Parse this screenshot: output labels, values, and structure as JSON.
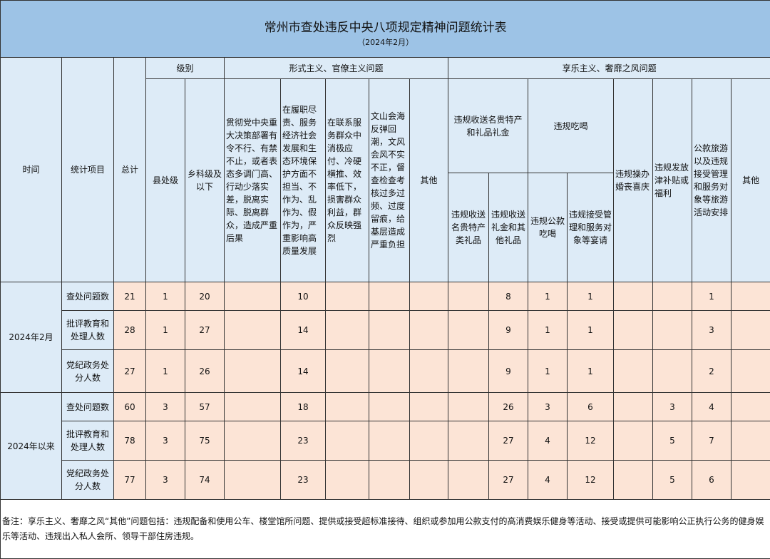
{
  "title": "常州市查处违反中央八项规定精神问题统计表",
  "subtitle": "（2024年2月）",
  "headers": {
    "time": "时间",
    "item": "统计项目",
    "total": "总计",
    "level": "级别",
    "county": "县处级",
    "township": "乡科级及以下",
    "formalism": "形式主义、官僚主义问题",
    "f": [
      "贯彻党中央重大决策部署有令不行、有禁不止，或者表态多调门高、行动少落实差，脱离实际、脱离群众，造成严重后果",
      "在履职尽责、服务经济社会发展和生态环境保护方面不担当、不作为、乱作为、假作为，严重影响高质量发展",
      "在联系服务群众中消极应付、冷硬横推、效率低下，损害群众利益，群众反映强烈",
      "文山会海反弹回潮，文风会风不实不正，督查检查考核过多过频、过度留痕，给基层造成严重负担",
      "其他"
    ],
    "hedonism": "享乐主义、奢靡之风问题",
    "gifts": "违规收送名贵特产和礼品礼金",
    "dining": "违规吃喝",
    "h": [
      "违规收送名贵特产类礼品",
      "违规收送礼金和其他礼品",
      "违规公款吃喝",
      "违规接受管理和服务对象等宴请",
      "违规操办婚丧喜庆",
      "违规发放津补贴或福利",
      "公款旅游以及违规接受管理和服务对象等旅游活动安排",
      "其他"
    ]
  },
  "groups": [
    {
      "period": "2024年2月",
      "rows": [
        {
          "item": "查处问题数",
          "values": [
            "21",
            "1",
            "20",
            "",
            "10",
            "",
            "",
            "",
            "",
            "8",
            "1",
            "1",
            "",
            "",
            "1",
            ""
          ]
        },
        {
          "item": "批评教育和处理人数",
          "values": [
            "28",
            "1",
            "27",
            "",
            "14",
            "",
            "",
            "",
            "",
            "9",
            "1",
            "1",
            "",
            "",
            "3",
            ""
          ]
        },
        {
          "item": "党纪政务处分人数",
          "values": [
            "27",
            "1",
            "26",
            "",
            "14",
            "",
            "",
            "",
            "",
            "9",
            "1",
            "1",
            "",
            "",
            "2",
            ""
          ]
        }
      ]
    },
    {
      "period": "2024年以来",
      "rows": [
        {
          "item": "查处问题数",
          "values": [
            "60",
            "3",
            "57",
            "",
            "18",
            "",
            "",
            "",
            "",
            "26",
            "3",
            "6",
            "",
            "3",
            "4",
            ""
          ]
        },
        {
          "item": "批评教育和处理人数",
          "values": [
            "78",
            "3",
            "75",
            "",
            "23",
            "",
            "",
            "",
            "",
            "27",
            "4",
            "12",
            "",
            "5",
            "7",
            ""
          ]
        },
        {
          "item": "党纪政务处分人数",
          "values": [
            "77",
            "3",
            "74",
            "",
            "23",
            "",
            "",
            "",
            "",
            "27",
            "4",
            "12",
            "",
            "5",
            "6",
            ""
          ]
        }
      ]
    }
  ],
  "note": "备注：享乐主义、奢靡之风“其他”问题包括：违规配备和使用公车、楼堂馆所问题、提供或接受超标准接待、组织或参加用公款支付的高消费娱乐健身等活动、接受或提供可能影响公正执行公务的健身娱乐等活动、违规出入私人会所、领导干部住房违规。",
  "colors": {
    "title_bg": "#9dc3e6",
    "header_bg": "#ddebf7",
    "data_bg": "#fce4d6"
  }
}
